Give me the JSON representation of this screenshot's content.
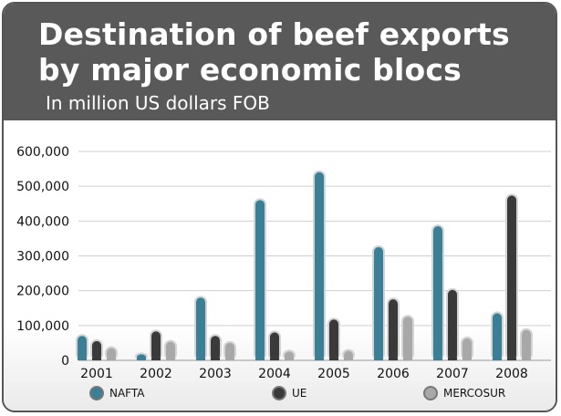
{
  "header": {
    "title": "Destination of beef exports by major economic blocs",
    "subtitle": "In million US dollars FOB"
  },
  "chart_data": {
    "type": "bar",
    "title": "Destination of beef exports by major economic blocs",
    "subtitle": "In million US dollars FOB",
    "xlabel": "",
    "ylabel": "",
    "categories": [
      "2001",
      "2002",
      "2003",
      "2004",
      "2005",
      "2006",
      "2007",
      "2008"
    ],
    "series": [
      {
        "name": "NAFTA",
        "color": "#3b7f96",
        "values": [
          65000,
          12000,
          175000,
          455000,
          535000,
          320000,
          380000,
          130000
        ]
      },
      {
        "name": "UE",
        "color": "#3a3a3a",
        "values": [
          50000,
          78000,
          65000,
          75000,
          112000,
          170000,
          197000,
          468000
        ]
      },
      {
        "name": "MERCOSUR",
        "color": "#a8a8a8",
        "values": [
          30000,
          48000,
          45000,
          20000,
          22000,
          120000,
          58000,
          82000
        ]
      }
    ],
    "yticks": [
      "0",
      "100,000",
      "200,000",
      "300,000",
      "400,000",
      "500,000",
      "600,000"
    ],
    "ylim": [
      0,
      600000
    ],
    "grid": true,
    "legend_position": "bottom"
  }
}
